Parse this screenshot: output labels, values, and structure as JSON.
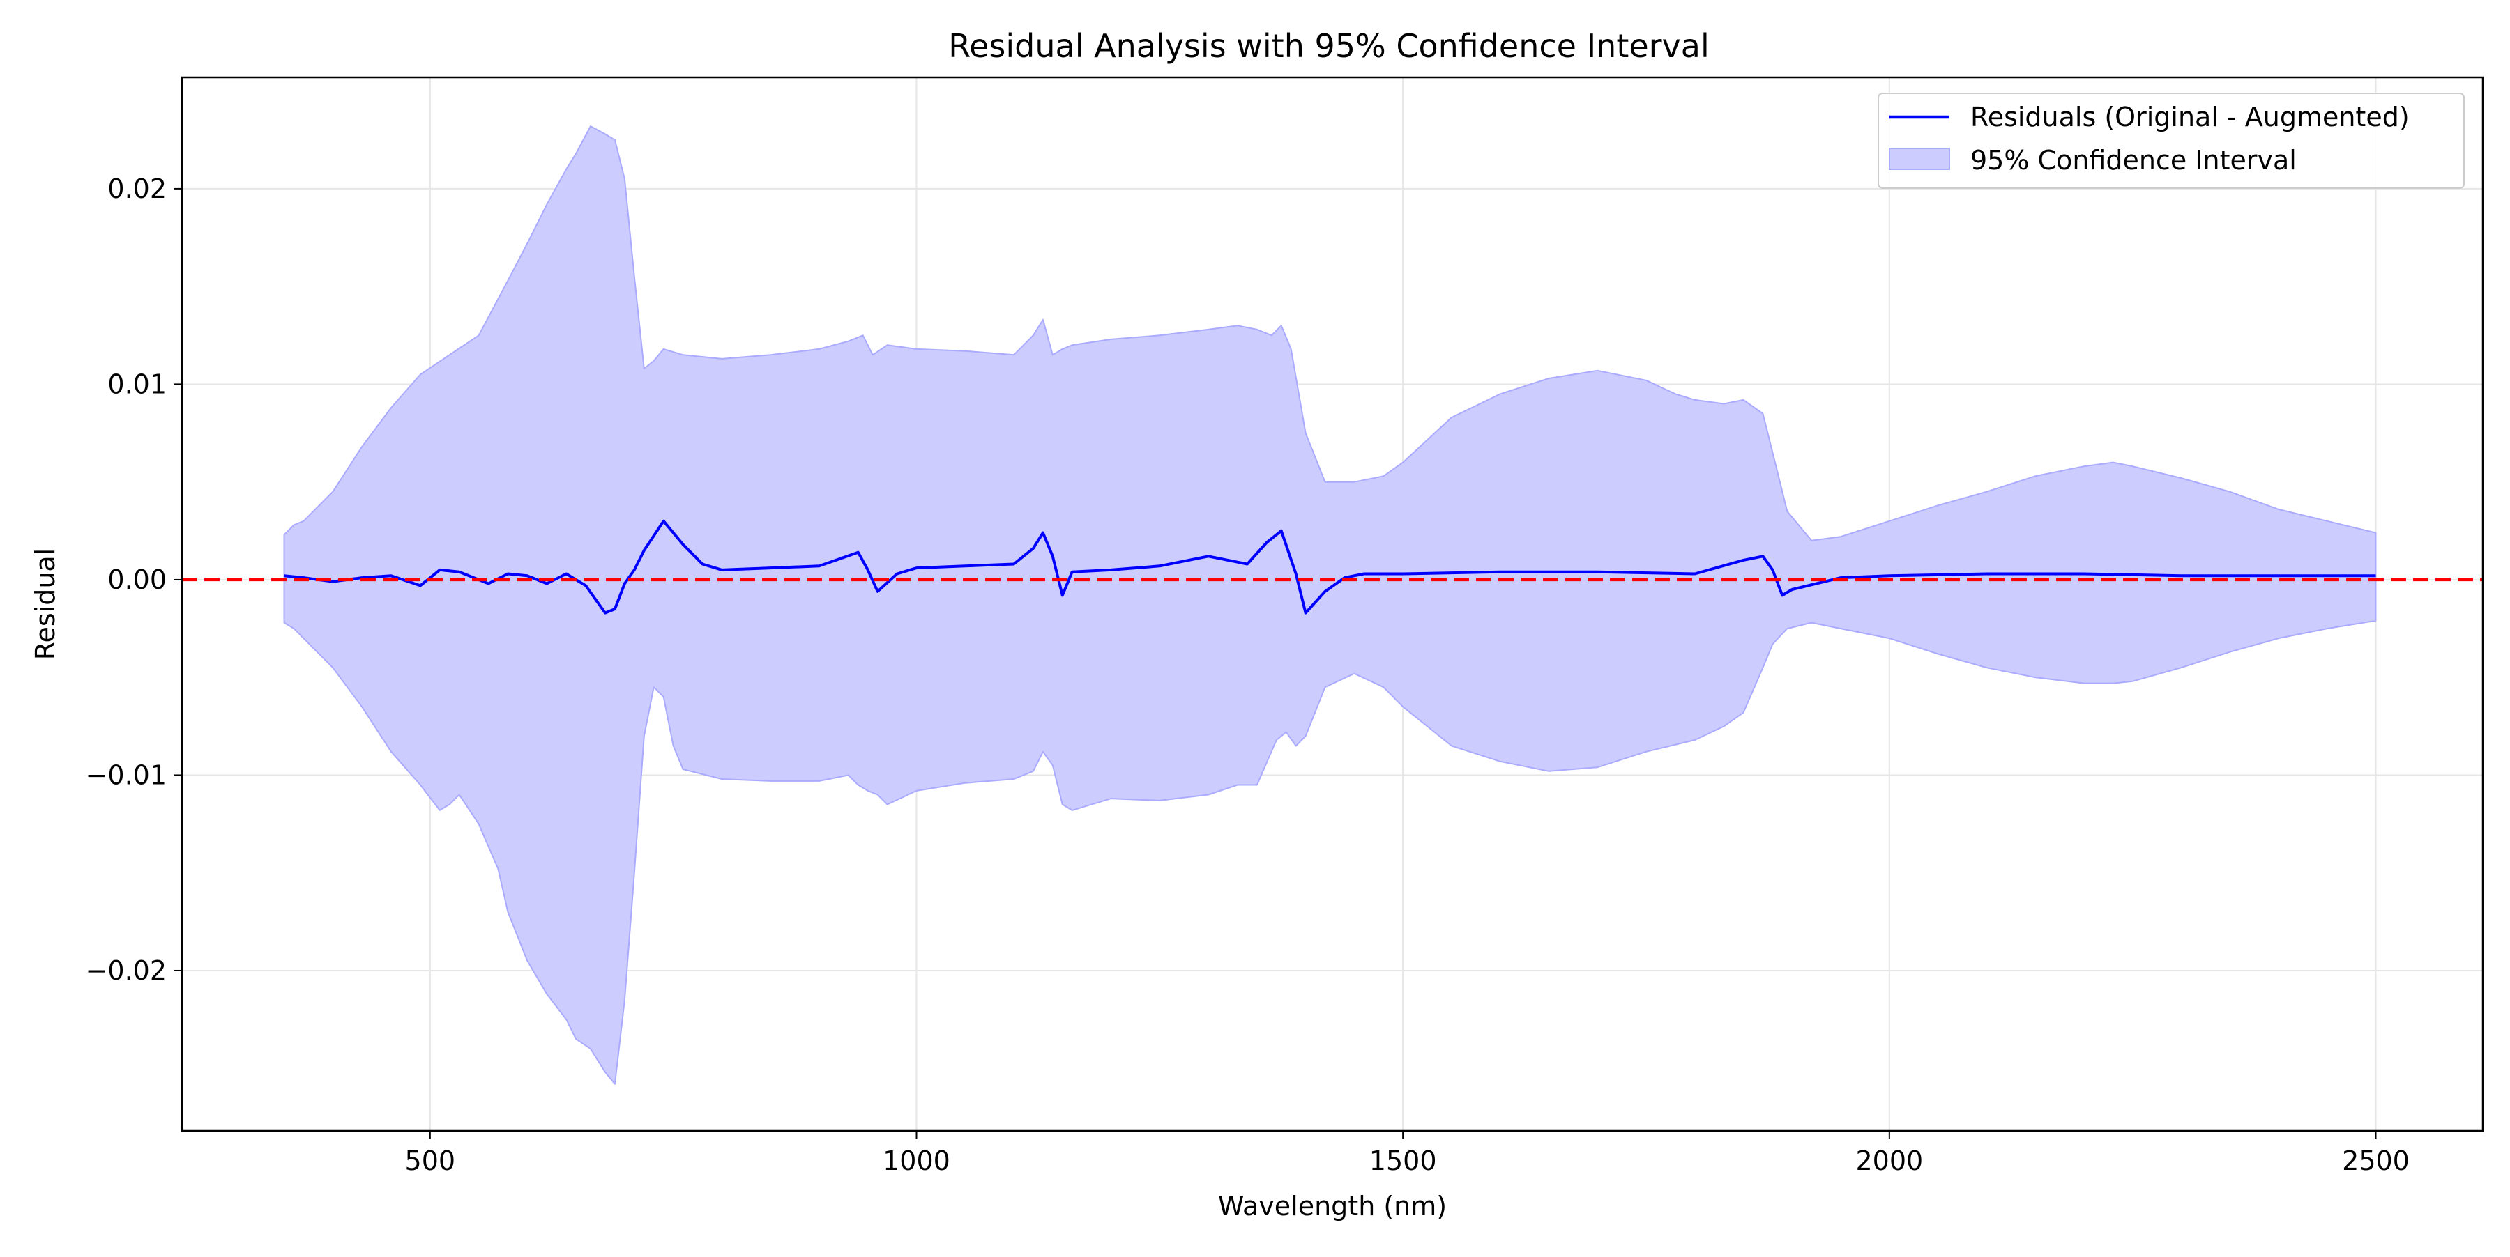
{
  "chart_data": {
    "type": "line",
    "title": "Residual Analysis with 95% Confidence Interval",
    "xlabel": "Wavelength (nm)",
    "ylabel": "Residual",
    "xlim": [
      245,
      2610
    ],
    "ylim": [
      -0.0282,
      0.0257
    ],
    "xticks": [
      500,
      1000,
      1500,
      2000,
      2500
    ],
    "xtick_labels": [
      "500",
      "1000",
      "1500",
      "2000",
      "2500"
    ],
    "yticks": [
      -0.02,
      -0.01,
      0.0,
      0.01,
      0.02
    ],
    "ytick_labels": [
      "−0.02",
      "−0.01",
      "0.00",
      "0.01",
      "0.02"
    ],
    "grid": true,
    "legend_position": "top-right",
    "legend": {
      "residuals_label": "Residuals (Original - Augmented)",
      "ci_label": "95% Confidence Interval"
    },
    "colors": {
      "residual_line": "#0000ff",
      "ci_fill": "#ccccff",
      "ci_edge": "#aaaaff",
      "zero_line": "#ff0000",
      "grid": "#e6e6e6"
    },
    "reference_line": {
      "y": 0,
      "style": "dashed"
    },
    "residual_series": {
      "name": "Residuals (Original - Augmented)",
      "x": [
        350,
        370,
        400,
        430,
        460,
        490,
        510,
        530,
        560,
        580,
        600,
        620,
        640,
        660,
        680,
        690,
        700,
        710,
        720,
        740,
        760,
        780,
        800,
        850,
        900,
        940,
        950,
        960,
        980,
        1000,
        1050,
        1100,
        1120,
        1130,
        1140,
        1150,
        1160,
        1200,
        1250,
        1300,
        1340,
        1360,
        1375,
        1390,
        1400,
        1420,
        1440,
        1460,
        1500,
        1600,
        1700,
        1800,
        1850,
        1870,
        1880,
        1890,
        1900,
        1950,
        2000,
        2100,
        2200,
        2300,
        2400,
        2500
      ],
      "y": [
        0.0002,
        0.0001,
        -0.0001,
        0.0001,
        0.0002,
        -0.0003,
        0.0005,
        0.0004,
        -0.0002,
        0.0003,
        0.0002,
        -0.0002,
        0.0003,
        -0.0003,
        -0.0017,
        -0.0015,
        -0.0002,
        0.0005,
        0.0015,
        0.003,
        0.0018,
        0.0008,
        0.0005,
        0.0006,
        0.0007,
        0.0014,
        0.0005,
        -0.0006,
        0.0003,
        0.0006,
        0.0007,
        0.0008,
        0.0016,
        0.0024,
        0.0012,
        -0.0008,
        0.0004,
        0.0005,
        0.0007,
        0.0012,
        0.0008,
        0.0019,
        0.0025,
        0.0003,
        -0.0017,
        -0.0006,
        0.0001,
        0.0003,
        0.0003,
        0.0004,
        0.0004,
        0.0003,
        0.001,
        0.0012,
        0.0005,
        -0.0008,
        -0.0005,
        0.0001,
        0.0002,
        0.0003,
        0.0003,
        0.0002,
        0.0002,
        0.0002
      ]
    },
    "ci_upper": {
      "x": [
        350,
        360,
        370,
        400,
        430,
        460,
        490,
        520,
        550,
        580,
        600,
        620,
        640,
        650,
        665,
        680,
        690,
        700,
        710,
        720,
        730,
        740,
        760,
        800,
        850,
        900,
        930,
        945,
        955,
        970,
        1000,
        1050,
        1100,
        1120,
        1130,
        1140,
        1150,
        1160,
        1200,
        1250,
        1300,
        1330,
        1350,
        1365,
        1375,
        1385,
        1400,
        1420,
        1450,
        1480,
        1500,
        1550,
        1600,
        1650,
        1700,
        1750,
        1780,
        1800,
        1830,
        1850,
        1870,
        1880,
        1895,
        1920,
        1950,
        2000,
        2050,
        2100,
        2150,
        2200,
        2230,
        2250,
        2300,
        2350,
        2400,
        2450,
        2500
      ],
      "y": [
        0.0023,
        0.0028,
        0.003,
        0.0045,
        0.0068,
        0.0088,
        0.0105,
        0.0115,
        0.0125,
        0.0153,
        0.0172,
        0.0192,
        0.021,
        0.0218,
        0.0232,
        0.0228,
        0.0225,
        0.0205,
        0.0155,
        0.0108,
        0.0112,
        0.0118,
        0.0115,
        0.0113,
        0.0115,
        0.0118,
        0.0122,
        0.0125,
        0.0115,
        0.012,
        0.0118,
        0.0117,
        0.0115,
        0.0125,
        0.0133,
        0.0115,
        0.0118,
        0.012,
        0.0123,
        0.0125,
        0.0128,
        0.013,
        0.0128,
        0.0125,
        0.013,
        0.0118,
        0.0075,
        0.005,
        0.005,
        0.0053,
        0.006,
        0.0083,
        0.0095,
        0.0103,
        0.0107,
        0.0102,
        0.0095,
        0.0092,
        0.009,
        0.0092,
        0.0085,
        0.0065,
        0.0035,
        0.002,
        0.0022,
        0.003,
        0.0038,
        0.0045,
        0.0053,
        0.0058,
        0.006,
        0.0058,
        0.0052,
        0.0045,
        0.0036,
        0.003,
        0.0024
      ]
    },
    "ci_lower": {
      "x": [
        350,
        360,
        370,
        400,
        430,
        460,
        490,
        510,
        520,
        530,
        550,
        570,
        580,
        600,
        620,
        640,
        650,
        665,
        680,
        690,
        700,
        710,
        720,
        730,
        740,
        750,
        760,
        800,
        850,
        900,
        930,
        940,
        950,
        960,
        970,
        1000,
        1050,
        1100,
        1120,
        1130,
        1140,
        1150,
        1160,
        1200,
        1250,
        1300,
        1330,
        1350,
        1370,
        1380,
        1390,
        1400,
        1420,
        1450,
        1480,
        1500,
        1550,
        1600,
        1650,
        1700,
        1750,
        1800,
        1830,
        1850,
        1870,
        1880,
        1895,
        1920,
        1950,
        2000,
        2050,
        2100,
        2150,
        2200,
        2230,
        2250,
        2300,
        2350,
        2400,
        2450,
        2500
      ],
      "y": [
        -0.0022,
        -0.0025,
        -0.003,
        -0.0045,
        -0.0065,
        -0.0088,
        -0.0105,
        -0.0118,
        -0.0115,
        -0.011,
        -0.0125,
        -0.0148,
        -0.017,
        -0.0195,
        -0.0212,
        -0.0225,
        -0.0235,
        -0.024,
        -0.0252,
        -0.0258,
        -0.0215,
        -0.015,
        -0.008,
        -0.0055,
        -0.006,
        -0.0085,
        -0.0097,
        -0.0102,
        -0.0103,
        -0.0103,
        -0.01,
        -0.0105,
        -0.0108,
        -0.011,
        -0.0115,
        -0.0108,
        -0.0104,
        -0.0102,
        -0.0098,
        -0.0088,
        -0.0095,
        -0.0115,
        -0.0118,
        -0.0112,
        -0.0113,
        -0.011,
        -0.0105,
        -0.0105,
        -0.0082,
        -0.0078,
        -0.0085,
        -0.008,
        -0.0055,
        -0.0048,
        -0.0055,
        -0.0065,
        -0.0085,
        -0.0093,
        -0.0098,
        -0.0096,
        -0.0088,
        -0.0082,
        -0.0075,
        -0.0068,
        -0.0045,
        -0.0033,
        -0.0025,
        -0.0022,
        -0.0025,
        -0.003,
        -0.0038,
        -0.0045,
        -0.005,
        -0.0053,
        -0.0053,
        -0.0052,
        -0.0045,
        -0.0037,
        -0.003,
        -0.0025,
        -0.0021
      ]
    }
  }
}
